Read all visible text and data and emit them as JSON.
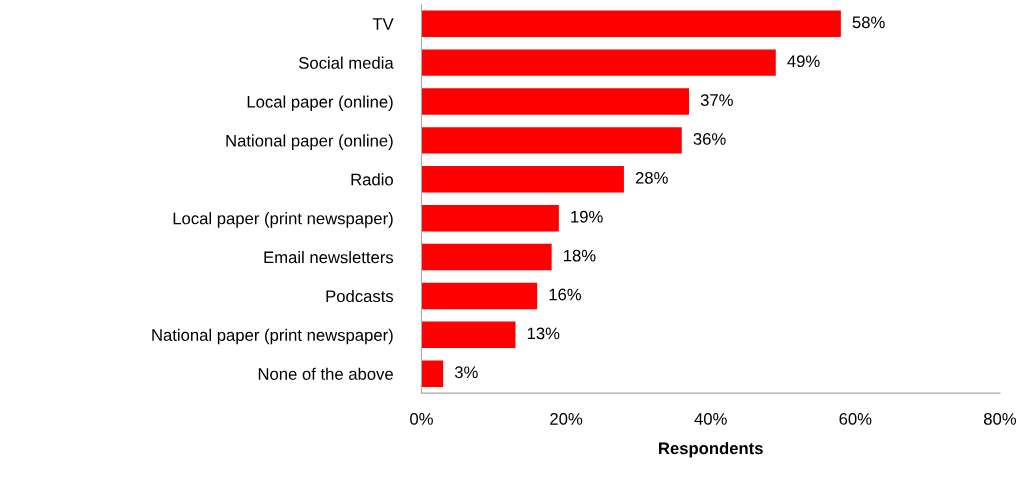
{
  "chart_data": {
    "type": "bar",
    "orientation": "horizontal",
    "xlabel": "Respondents",
    "categories": [
      "TV",
      "Social media",
      "Local paper (online)",
      "National paper (online)",
      "Radio",
      "Local paper (print newspaper)",
      "Email newsletters",
      "Podcasts",
      "National paper (print newspaper)",
      "None of the above"
    ],
    "values": [
      58,
      49,
      37,
      36,
      28,
      19,
      18,
      16,
      13,
      3
    ],
    "value_labels": [
      "58%",
      "49%",
      "37%",
      "36%",
      "28%",
      "19%",
      "18%",
      "16%",
      "13%",
      "3%"
    ],
    "color": "#ff0000",
    "xlim": [
      0,
      80
    ],
    "xticks": [
      {
        "value": 0,
        "label": "0%"
      },
      {
        "value": 20,
        "label": "20%"
      },
      {
        "value": 40,
        "label": "40%"
      },
      {
        "value": 60,
        "label": "60%"
      },
      {
        "value": 80,
        "label": "80%"
      }
    ],
    "grid": false
  }
}
